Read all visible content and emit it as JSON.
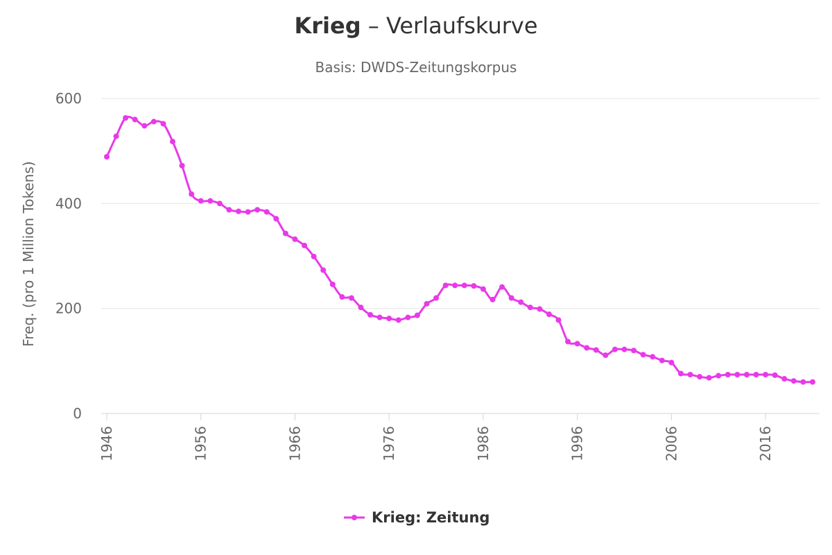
{
  "chart_data": {
    "type": "line",
    "title_word": "Krieg",
    "title_rest": " – Verlaufskurve",
    "subtitle": "Basis: DWDS-Zeitungskorpus",
    "xlabel": "",
    "ylabel": "Freq. (pro 1 Million Tokens)",
    "xlim": [
      1946,
      2021
    ],
    "ylim": [
      0,
      600
    ],
    "yticks": [
      "0",
      "200",
      "400",
      "600"
    ],
    "xticks": [
      "1946",
      "1956",
      "1966",
      "1976",
      "1986",
      "1996",
      "2006",
      "2016"
    ],
    "grid": true,
    "legend_position": "bottom-center",
    "colors": {
      "series": "#e83ae8",
      "grid": "#e6e6e6",
      "axis": "#ccd6eb",
      "text": "#666666",
      "title": "#333333"
    },
    "series": [
      {
        "name": "Krieg: Zeitung",
        "x": [
          1946,
          1947,
          1948,
          1949,
          1950,
          1951,
          1952,
          1953,
          1954,
          1955,
          1956,
          1957,
          1958,
          1959,
          1960,
          1961,
          1962,
          1963,
          1964,
          1965,
          1966,
          1967,
          1968,
          1969,
          1970,
          1971,
          1972,
          1973,
          1974,
          1975,
          1976,
          1977,
          1978,
          1979,
          1980,
          1981,
          1982,
          1983,
          1984,
          1985,
          1986,
          1987,
          1988,
          1989,
          1990,
          1991,
          1992,
          1993,
          1994,
          1995,
          1996,
          1997,
          1998,
          1999,
          2000,
          2001,
          2002,
          2003,
          2004,
          2005,
          2006,
          2007,
          2008,
          2009,
          2010,
          2011,
          2012,
          2013,
          2014,
          2015,
          2016,
          2017,
          2018,
          2019,
          2020,
          2021
        ],
        "values": [
          489,
          528,
          563,
          560,
          548,
          556,
          552,
          518,
          472,
          418,
          405,
          405,
          400,
          388,
          385,
          384,
          388,
          384,
          371,
          343,
          332,
          320,
          299,
          273,
          246,
          222,
          220,
          202,
          188,
          183,
          181,
          178,
          183,
          187,
          209,
          220,
          244,
          244,
          244,
          243,
          237,
          217,
          241,
          220,
          212,
          202,
          199,
          189,
          178,
          137,
          133,
          125,
          121,
          111,
          122,
          122,
          120,
          112,
          108,
          101,
          97,
          76,
          74,
          70,
          68,
          72,
          74,
          74,
          74,
          74,
          74,
          73,
          66,
          62,
          60,
          60
        ]
      }
    ]
  }
}
